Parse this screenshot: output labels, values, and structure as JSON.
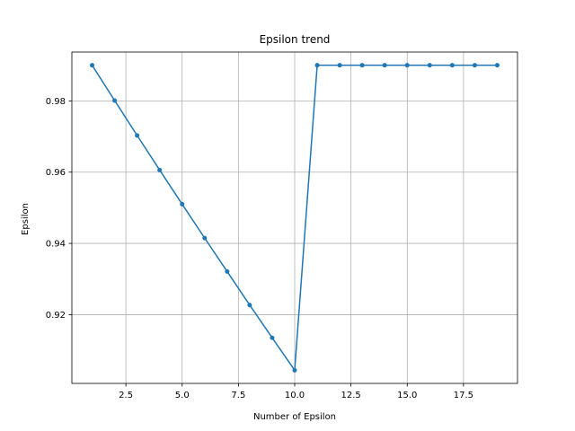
{
  "chart_data": {
    "type": "line",
    "title": "Epsilon trend",
    "xlabel": "Number of Epsilon",
    "ylabel": "Epsilon",
    "xlim": [
      0.1,
      19.9
    ],
    "ylim": [
      0.9007,
      0.9937
    ],
    "grid": true,
    "x_ticks": [
      2.5,
      5.0,
      7.5,
      10.0,
      12.5,
      15.0,
      17.5
    ],
    "x_tick_labels": [
      "2.5",
      "5.0",
      "7.5",
      "10.0",
      "12.5",
      "15.0",
      "17.5"
    ],
    "y_ticks": [
      0.92,
      0.94,
      0.96,
      0.98
    ],
    "y_tick_labels": [
      "0.92",
      "0.94",
      "0.96",
      "0.98"
    ],
    "series": [
      {
        "name": "epsilon",
        "color": "#1f77b4",
        "x": [
          1,
          2,
          3,
          4,
          5,
          6,
          7,
          8,
          9,
          10,
          11,
          12,
          13,
          14,
          15,
          16,
          17,
          18,
          19
        ],
        "values": [
          0.99,
          0.9801,
          0.9703,
          0.9606,
          0.951,
          0.9415,
          0.9321,
          0.9227,
          0.9135,
          0.9044,
          0.99,
          0.99,
          0.99,
          0.99,
          0.99,
          0.99,
          0.99,
          0.99,
          0.99
        ]
      }
    ]
  }
}
